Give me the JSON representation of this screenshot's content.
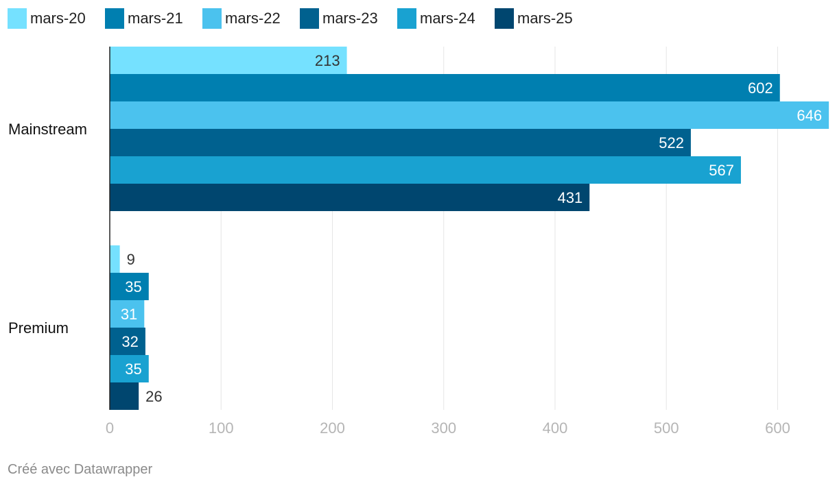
{
  "chart_data": {
    "type": "bar",
    "orientation": "horizontal",
    "grouped": true,
    "categories": [
      "Mainstream",
      "Premium"
    ],
    "series": [
      {
        "name": "mars-20",
        "values": [
          213,
          9
        ],
        "color": "#75E1FF"
      },
      {
        "name": "mars-21",
        "values": [
          602,
          35
        ],
        "color": "#007FB0"
      },
      {
        "name": "mars-22",
        "values": [
          646,
          31
        ],
        "color": "#4BC2EE"
      },
      {
        "name": "mars-23",
        "values": [
          522,
          32
        ],
        "color": "#00618F"
      },
      {
        "name": "mars-24",
        "values": [
          567,
          35
        ],
        "color": "#19A2D1"
      },
      {
        "name": "mars-25",
        "values": [
          431,
          26
        ],
        "color": "#00466F"
      }
    ],
    "xlim": [
      0,
      646
    ],
    "xticks": [
      0,
      100,
      200,
      300,
      400,
      500,
      600
    ],
    "grid": true,
    "legend_position": "top-left",
    "data_labels": true
  },
  "footer": {
    "credit": "Créé avec Datawrapper"
  }
}
